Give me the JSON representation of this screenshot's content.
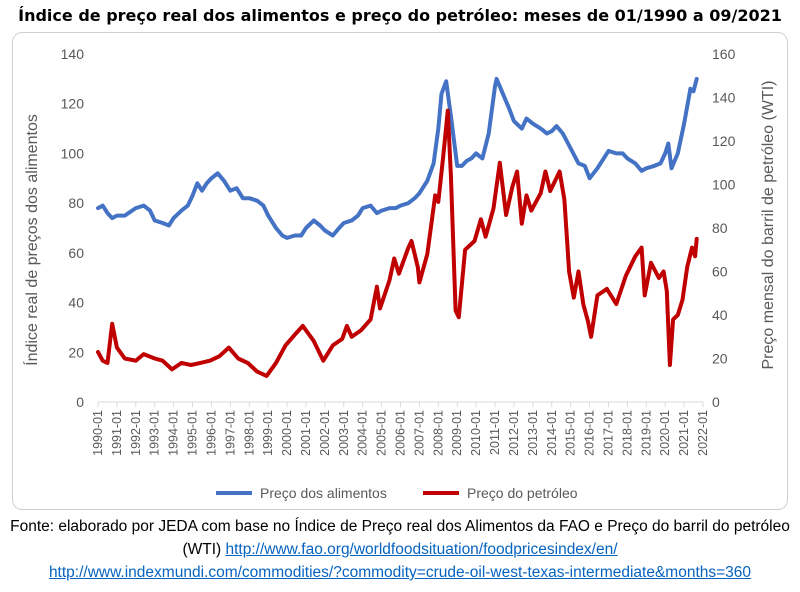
{
  "title": "Índice de preço real dos alimentos e preço do petróleo: meses de 01/1990 a 09/2021",
  "source": {
    "text": "Fonte: elaborado por JEDA com base no Índice de Preço real dos Alimentos da FAO e Preço do barril do petróleo (WTI)",
    "link1": "http://www.fao.org/worldfoodsituation/foodpricesindex/en/",
    "link2": "http://www.indexmundi.com/commodities/?commodity=crude-oil-west-texas-intermediate&months=360"
  },
  "chart_data": {
    "type": "line",
    "title": "Índice de preço real dos alimentos e preço do petróleo: meses de 01/1990 a 09/2021",
    "ylabel": "Índice real de preços dos alimentos",
    "y2label": "Preço mensal do barril de petróleo (WTI)",
    "ylim": [
      0,
      140
    ],
    "y2lim": [
      0,
      160
    ],
    "yticks": [
      "0",
      "20",
      "40",
      "60",
      "80",
      "100",
      "120",
      "140"
    ],
    "y2ticks": [
      "0",
      "20",
      "40",
      "60",
      "80",
      "100",
      "120",
      "140",
      "160"
    ],
    "xticks": [
      "1990-01",
      "1991-01",
      "1992-01",
      "1993-01",
      "1994-01",
      "1995-01",
      "1996-01",
      "1997-01",
      "1998-01",
      "1999-01",
      "2000-01",
      "2001-01",
      "2002-01",
      "2003-01",
      "2004-01",
      "2005-01",
      "2006-01",
      "2007-01",
      "2008-01",
      "2009-01",
      "2010-01",
      "2011-01",
      "2012-01",
      "2013-01",
      "2014-01",
      "2015-01",
      "2016-01",
      "2017-01",
      "2018-01",
      "2019-01",
      "2020-01",
      "2021-01",
      "2022-01"
    ],
    "xlim": [
      "1990-01",
      "2022-01"
    ],
    "grid": false,
    "legend_position": "bottom",
    "series": [
      {
        "name": "Preço dos alimentos",
        "axis": "left",
        "color": "#4472c4",
        "points": [
          [
            "1990-01",
            78
          ],
          [
            "1990-04",
            79
          ],
          [
            "1990-07",
            76
          ],
          [
            "1990-10",
            74
          ],
          [
            "1991-01",
            75
          ],
          [
            "1991-06",
            75
          ],
          [
            "1992-01",
            78
          ],
          [
            "1992-06",
            79
          ],
          [
            "1992-10",
            77
          ],
          [
            "1993-01",
            73
          ],
          [
            "1993-06",
            72
          ],
          [
            "1993-10",
            71
          ],
          [
            "1994-01",
            74
          ],
          [
            "1994-06",
            77
          ],
          [
            "1994-10",
            79
          ],
          [
            "1995-01",
            83
          ],
          [
            "1995-04",
            88
          ],
          [
            "1995-07",
            85
          ],
          [
            "1995-10",
            88
          ],
          [
            "1996-01",
            90
          ],
          [
            "1996-05",
            92
          ],
          [
            "1996-09",
            89
          ],
          [
            "1997-01",
            85
          ],
          [
            "1997-05",
            86
          ],
          [
            "1997-09",
            82
          ],
          [
            "1998-01",
            82
          ],
          [
            "1998-06",
            81
          ],
          [
            "1998-10",
            79
          ],
          [
            "1999-01",
            75
          ],
          [
            "1999-06",
            70
          ],
          [
            "1999-10",
            67
          ],
          [
            "2000-01",
            66
          ],
          [
            "2000-06",
            67
          ],
          [
            "2000-10",
            67
          ],
          [
            "2001-01",
            70
          ],
          [
            "2001-06",
            73
          ],
          [
            "2001-10",
            71
          ],
          [
            "2002-01",
            69
          ],
          [
            "2002-06",
            67
          ],
          [
            "2002-10",
            70
          ],
          [
            "2003-01",
            72
          ],
          [
            "2003-06",
            73
          ],
          [
            "2003-10",
            75
          ],
          [
            "2004-01",
            78
          ],
          [
            "2004-06",
            79
          ],
          [
            "2004-10",
            76
          ],
          [
            "2005-01",
            77
          ],
          [
            "2005-06",
            78
          ],
          [
            "2005-10",
            78
          ],
          [
            "2006-01",
            79
          ],
          [
            "2006-06",
            80
          ],
          [
            "2006-10",
            82
          ],
          [
            "2007-01",
            84
          ],
          [
            "2007-06",
            89
          ],
          [
            "2007-10",
            96
          ],
          [
            "2008-01",
            110
          ],
          [
            "2008-03",
            124
          ],
          [
            "2008-06",
            129
          ],
          [
            "2008-09",
            115
          ],
          [
            "2009-01",
            95
          ],
          [
            "2009-04",
            95
          ],
          [
            "2009-07",
            97
          ],
          [
            "2009-10",
            98
          ],
          [
            "2010-01",
            100
          ],
          [
            "2010-05",
            98
          ],
          [
            "2010-09",
            108
          ],
          [
            "2011-01",
            127
          ],
          [
            "2011-02",
            130
          ],
          [
            "2011-06",
            124
          ],
          [
            "2011-10",
            118
          ],
          [
            "2012-01",
            113
          ],
          [
            "2012-06",
            110
          ],
          [
            "2012-09",
            114
          ],
          [
            "2013-01",
            112
          ],
          [
            "2013-06",
            110
          ],
          [
            "2013-10",
            108
          ],
          [
            "2014-01",
            109
          ],
          [
            "2014-04",
            111
          ],
          [
            "2014-08",
            108
          ],
          [
            "2015-01",
            102
          ],
          [
            "2015-06",
            96
          ],
          [
            "2015-10",
            95
          ],
          [
            "2016-01",
            90
          ],
          [
            "2016-06",
            94
          ],
          [
            "2016-10",
            98
          ],
          [
            "2017-01",
            101
          ],
          [
            "2017-06",
            100
          ],
          [
            "2017-10",
            100
          ],
          [
            "2018-01",
            98
          ],
          [
            "2018-06",
            96
          ],
          [
            "2018-10",
            93
          ],
          [
            "2019-01",
            94
          ],
          [
            "2019-06",
            95
          ],
          [
            "2019-10",
            96
          ],
          [
            "2020-01",
            100
          ],
          [
            "2020-03",
            104
          ],
          [
            "2020-05",
            94
          ],
          [
            "2020-09",
            100
          ],
          [
            "2021-01",
            112
          ],
          [
            "2021-05",
            126
          ],
          [
            "2021-07",
            125
          ],
          [
            "2021-09",
            130
          ]
        ]
      },
      {
        "name": "Preço do petróleo",
        "axis": "right",
        "color": "#c00000",
        "points": [
          [
            "1990-01",
            23
          ],
          [
            "1990-04",
            19
          ],
          [
            "1990-07",
            18
          ],
          [
            "1990-09",
            30
          ],
          [
            "1990-10",
            36
          ],
          [
            "1991-01",
            25
          ],
          [
            "1991-06",
            20
          ],
          [
            "1992-01",
            19
          ],
          [
            "1992-06",
            22
          ],
          [
            "1993-01",
            20
          ],
          [
            "1993-06",
            19
          ],
          [
            "1993-12",
            15
          ],
          [
            "1994-06",
            18
          ],
          [
            "1994-12",
            17
          ],
          [
            "1995-06",
            18
          ],
          [
            "1995-12",
            19
          ],
          [
            "1996-06",
            21
          ],
          [
            "1996-12",
            25
          ],
          [
            "1997-06",
            20
          ],
          [
            "1997-12",
            18
          ],
          [
            "1998-06",
            14
          ],
          [
            "1998-12",
            12
          ],
          [
            "1999-06",
            18
          ],
          [
            "1999-12",
            26
          ],
          [
            "2000-06",
            31
          ],
          [
            "2000-11",
            35
          ],
          [
            "2001-06",
            28
          ],
          [
            "2001-12",
            19
          ],
          [
            "2002-06",
            26
          ],
          [
            "2002-12",
            29
          ],
          [
            "2003-03",
            35
          ],
          [
            "2003-06",
            30
          ],
          [
            "2003-12",
            33
          ],
          [
            "2004-06",
            38
          ],
          [
            "2004-10",
            53
          ],
          [
            "2004-12",
            43
          ],
          [
            "2005-06",
            56
          ],
          [
            "2005-09",
            66
          ],
          [
            "2005-12",
            59
          ],
          [
            "2006-06",
            71
          ],
          [
            "2006-08",
            74
          ],
          [
            "2006-12",
            62
          ],
          [
            "2007-01",
            55
          ],
          [
            "2007-06",
            68
          ],
          [
            "2007-11",
            95
          ],
          [
            "2008-01",
            92
          ],
          [
            "2008-04",
            112
          ],
          [
            "2008-07",
            134
          ],
          [
            "2008-09",
            104
          ],
          [
            "2008-12",
            42
          ],
          [
            "2009-02",
            39
          ],
          [
            "2009-06",
            70
          ],
          [
            "2009-12",
            74
          ],
          [
            "2010-04",
            84
          ],
          [
            "2010-07",
            76
          ],
          [
            "2010-12",
            89
          ],
          [
            "2011-04",
            110
          ],
          [
            "2011-08",
            86
          ],
          [
            "2011-12",
            99
          ],
          [
            "2012-03",
            106
          ],
          [
            "2012-06",
            82
          ],
          [
            "2012-09",
            95
          ],
          [
            "2012-12",
            88
          ],
          [
            "2013-06",
            96
          ],
          [
            "2013-09",
            106
          ],
          [
            "2013-12",
            97
          ],
          [
            "2014-06",
            106
          ],
          [
            "2014-09",
            93
          ],
          [
            "2014-12",
            60
          ],
          [
            "2015-03",
            48
          ],
          [
            "2015-06",
            60
          ],
          [
            "2015-09",
            45
          ],
          [
            "2015-12",
            37
          ],
          [
            "2016-02",
            30
          ],
          [
            "2016-06",
            49
          ],
          [
            "2016-12",
            52
          ],
          [
            "2017-06",
            45
          ],
          [
            "2017-12",
            58
          ],
          [
            "2018-06",
            67
          ],
          [
            "2018-10",
            71
          ],
          [
            "2018-12",
            49
          ],
          [
            "2019-04",
            64
          ],
          [
            "2019-09",
            57
          ],
          [
            "2019-12",
            60
          ],
          [
            "2020-02",
            51
          ],
          [
            "2020-04",
            17
          ],
          [
            "2020-06",
            38
          ],
          [
            "2020-09",
            40
          ],
          [
            "2020-12",
            47
          ],
          [
            "2021-03",
            62
          ],
          [
            "2021-06",
            71
          ],
          [
            "2021-08",
            67
          ],
          [
            "2021-09",
            75
          ]
        ]
      }
    ]
  }
}
